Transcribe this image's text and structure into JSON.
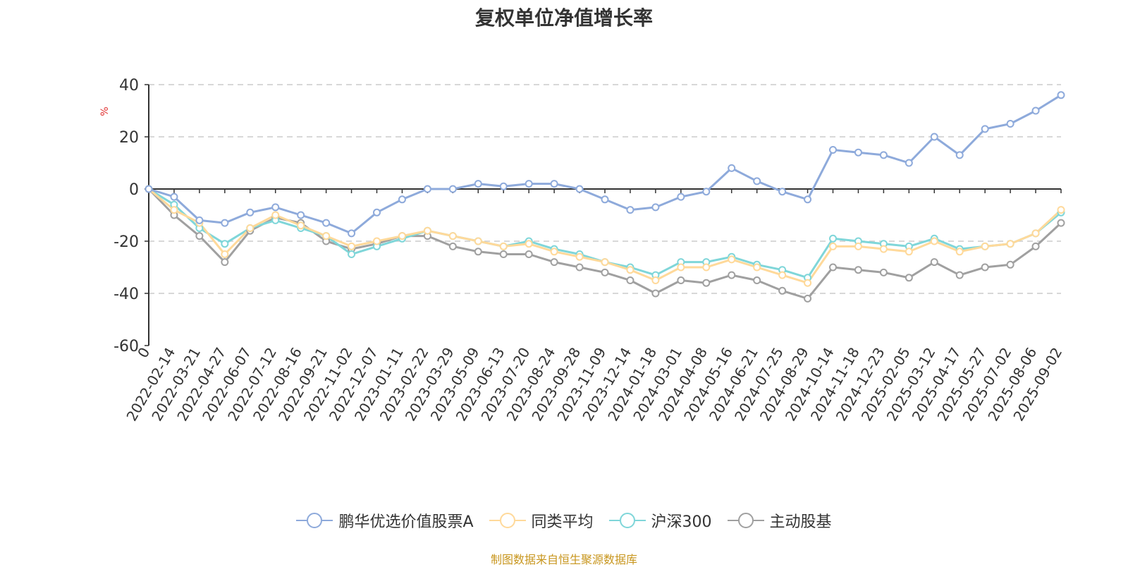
{
  "chart_data": {
    "type": "line",
    "title": "复权单位净值增长率",
    "ylabel": "%",
    "ylim": [
      -60,
      40
    ],
    "yticks": [
      -60,
      -40,
      -20,
      0,
      20,
      40
    ],
    "grid": true,
    "legend_position": "bottom",
    "categories": [
      "0",
      "2022-02-14",
      "2022-03-21",
      "2022-04-27",
      "2022-06-07",
      "2022-07-12",
      "2022-08-16",
      "2022-09-21",
      "2022-11-02",
      "2022-12-07",
      "2023-01-11",
      "2023-02-22",
      "2023-03-29",
      "2023-05-09",
      "2023-06-13",
      "2023-07-20",
      "2023-08-24",
      "2023-09-28",
      "2023-11-09",
      "2023-12-14",
      "2024-01-18",
      "2024-03-01",
      "2024-04-08",
      "2024-05-16",
      "2024-06-21",
      "2024-07-25",
      "2024-08-29",
      "2024-10-14",
      "2024-11-18",
      "2024-12-23",
      "2025-02-05",
      "2025-03-12",
      "2025-04-17",
      "2025-05-27",
      "2025-07-02",
      "2025-08-06",
      "2025-09-02"
    ],
    "series": [
      {
        "name": "鹏华优选价值股票A",
        "color": "#8eaadb",
        "values": [
          0,
          -3,
          -12,
          -13,
          -9,
          -7,
          -10,
          -13,
          -17,
          -9,
          -4,
          0,
          0,
          2,
          1,
          2,
          2,
          0,
          -4,
          -8,
          -7,
          -3,
          -1,
          8,
          3,
          -1,
          -4,
          15,
          14,
          13,
          10,
          20,
          13,
          23,
          25,
          30,
          36
        ]
      },
      {
        "name": "同类平均",
        "color": "#ffd99a",
        "values": [
          0,
          -8,
          -13,
          -25,
          -15,
          -10,
          -14,
          -18,
          -22,
          -20,
          -18,
          -16,
          -18,
          -20,
          -22,
          -21,
          -24,
          -26,
          -28,
          -31,
          -35,
          -30,
          -30,
          -27,
          -30,
          -33,
          -36,
          -22,
          -22,
          -23,
          -24,
          -20,
          -24,
          -22,
          -21,
          -17,
          -8
        ]
      },
      {
        "name": "沪深300",
        "color": "#7fd6d9",
        "values": [
          0,
          -6,
          -15,
          -21,
          -15,
          -12,
          -15,
          -18,
          -25,
          -22,
          -19,
          -16,
          -18,
          -20,
          -22,
          -20,
          -23,
          -25,
          -28,
          -30,
          -33,
          -28,
          -28,
          -26,
          -29,
          -31,
          -34,
          -19,
          -20,
          -21,
          -22,
          -19,
          -23,
          -22,
          -21,
          -17,
          -9
        ]
      },
      {
        "name": "主动股基",
        "color": "#a0a0a0",
        "values": [
          0,
          -10,
          -18,
          -28,
          -16,
          -11,
          -13,
          -20,
          -23,
          -21,
          -18,
          -18,
          -22,
          -24,
          -25,
          -25,
          -28,
          -30,
          -32,
          -35,
          -40,
          -35,
          -36,
          -33,
          -35,
          -39,
          -42,
          -30,
          -31,
          -32,
          -34,
          -28,
          -33,
          -30,
          -29,
          -22,
          -13
        ]
      }
    ]
  },
  "source_note": "制图数据来自恒生聚源数据库"
}
